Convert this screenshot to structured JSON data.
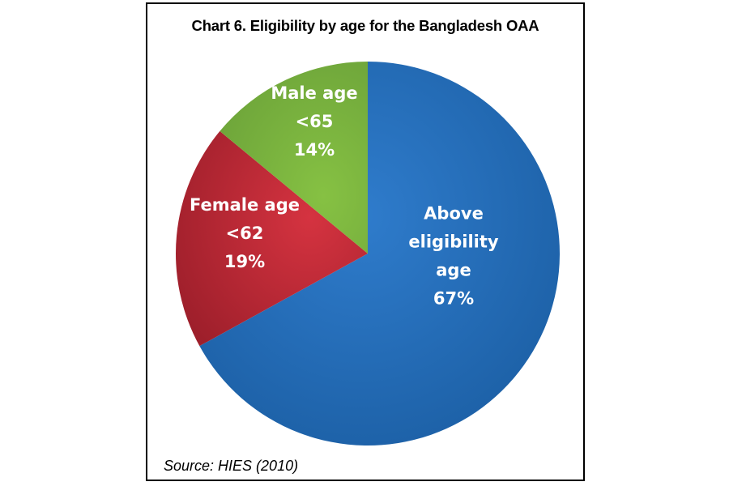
{
  "chart_data": {
    "type": "pie",
    "title": "Chart 6. Eligibility by age for the Bangladesh OAA",
    "source": "Source: HIES (2010)",
    "slices": [
      {
        "label_lines": [
          "Above",
          "eligibility",
          "age"
        ],
        "value": 67,
        "value_label": "67%",
        "color": "#2166ae"
      },
      {
        "label_lines": [
          "Female age",
          "<62"
        ],
        "value": 19,
        "value_label": "19%",
        "color": "#c22a36"
      },
      {
        "label_lines": [
          "Male age",
          "<65"
        ],
        "value": 14,
        "value_label": "14%",
        "color": "#7db53f"
      }
    ]
  }
}
